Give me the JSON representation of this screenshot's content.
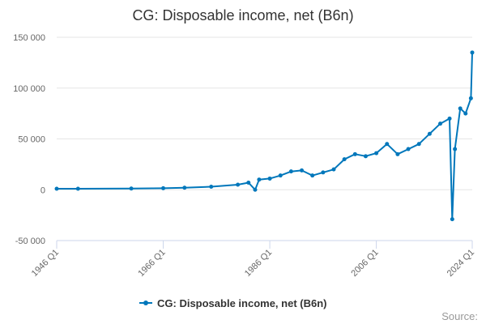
{
  "chart_data": {
    "type": "line",
    "title": "CG: Disposable income, net (B6n)",
    "xlabel": "",
    "ylabel": "",
    "x_tick_labels": [
      "1946 Q1",
      "1966 Q1",
      "1986 Q1",
      "2006 Q1",
      "2024 Q1"
    ],
    "y_ticks": [
      -50000,
      0,
      50000,
      100000,
      150000
    ],
    "y_tick_labels": [
      "-50 000",
      "0",
      "50 000",
      "100 000",
      "150 000"
    ],
    "ylim": [
      -50000,
      150000
    ],
    "x_range": [
      "1946 Q1",
      "2024 Q1"
    ],
    "grid": true,
    "legend_position": "bottom-center",
    "series": [
      {
        "name": "CG: Disposable income, net (B6n)",
        "color": "#0077bb",
        "keypoints": [
          {
            "x": "1946 Q1",
            "y": 1000
          },
          {
            "x": "1950 Q1",
            "y": 1000
          },
          {
            "x": "1960 Q1",
            "y": 1200
          },
          {
            "x": "1966 Q1",
            "y": 1500
          },
          {
            "x": "1970 Q1",
            "y": 2000
          },
          {
            "x": "1975 Q1",
            "y": 3000
          },
          {
            "x": "1980 Q1",
            "y": 5000
          },
          {
            "x": "1982 Q1",
            "y": 7000
          },
          {
            "x": "1983 Q2",
            "y": 0
          },
          {
            "x": "1984 Q1",
            "y": 10000
          },
          {
            "x": "1986 Q1",
            "y": 11000
          },
          {
            "x": "1988 Q1",
            "y": 14000
          },
          {
            "x": "1990 Q1",
            "y": 18000
          },
          {
            "x": "1992 Q1",
            "y": 19000
          },
          {
            "x": "1994 Q1",
            "y": 14000
          },
          {
            "x": "1996 Q1",
            "y": 17000
          },
          {
            "x": "1998 Q1",
            "y": 20000
          },
          {
            "x": "2000 Q1",
            "y": 30000
          },
          {
            "x": "2002 Q1",
            "y": 35000
          },
          {
            "x": "2004 Q1",
            "y": 33000
          },
          {
            "x": "2006 Q1",
            "y": 36000
          },
          {
            "x": "2008 Q1",
            "y": 45000
          },
          {
            "x": "2010 Q1",
            "y": 35000
          },
          {
            "x": "2012 Q1",
            "y": 40000
          },
          {
            "x": "2014 Q1",
            "y": 45000
          },
          {
            "x": "2016 Q1",
            "y": 55000
          },
          {
            "x": "2018 Q1",
            "y": 65000
          },
          {
            "x": "2019 Q4",
            "y": 70000
          },
          {
            "x": "2020 Q2",
            "y": -29000
          },
          {
            "x": "2020 Q4",
            "y": 40000
          },
          {
            "x": "2021 Q4",
            "y": 80000
          },
          {
            "x": "2022 Q4",
            "y": 75000
          },
          {
            "x": "2023 Q4",
            "y": 90000
          },
          {
            "x": "2024 Q1",
            "y": 135000
          }
        ]
      }
    ]
  },
  "credits": "Source:"
}
